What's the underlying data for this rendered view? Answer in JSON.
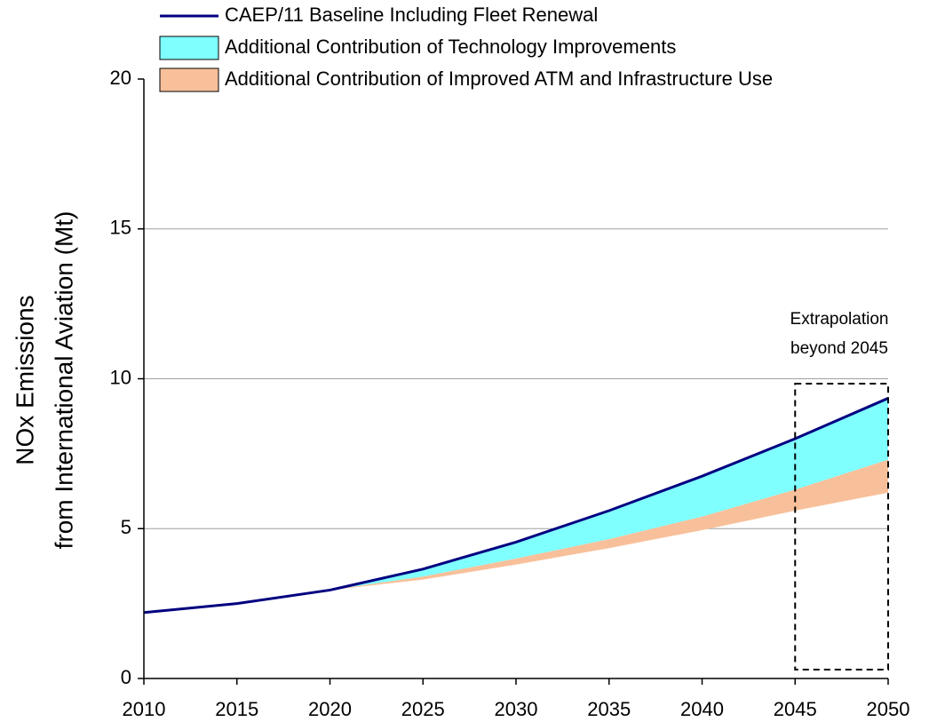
{
  "chart_data": {
    "type": "line",
    "ylabel": [
      "NOx Emissions",
      "from International Aviation (Mt)"
    ],
    "x": [
      2010,
      2015,
      2020,
      2025,
      2030,
      2035,
      2040,
      2045,
      2050
    ],
    "series": [
      {
        "name": "CAEP/11 Baseline Including Fleet Renewal",
        "type": "line",
        "color": "#000080",
        "values": [
          2.2,
          2.5,
          2.95,
          3.65,
          4.55,
          5.6,
          6.75,
          8.0,
          9.35
        ]
      },
      {
        "name": "Additional Contribution of Technology Improvements",
        "type": "area",
        "color": "#80ffff",
        "values": [
          0,
          0,
          0,
          0.25,
          0.55,
          0.95,
          1.35,
          1.7,
          2.05
        ]
      },
      {
        "name": "Additional Contribution of Improved ATM and Infrastructure Use",
        "type": "area",
        "color": "#f8c09a",
        "values": [
          0,
          0,
          0,
          0.1,
          0.2,
          0.3,
          0.45,
          0.7,
          1.1
        ]
      }
    ],
    "xlim": [
      2010,
      2050
    ],
    "xticks": [
      2010,
      2015,
      2020,
      2025,
      2030,
      2035,
      2040,
      2045,
      2050
    ],
    "ylim": [
      0,
      20
    ],
    "yticks": [
      0,
      5,
      10,
      15,
      20
    ],
    "grid": true,
    "legend": "top-left",
    "annotation": {
      "text": [
        "Extrapolation",
        "beyond 2045"
      ],
      "xrange": [
        2045,
        2050
      ]
    }
  }
}
